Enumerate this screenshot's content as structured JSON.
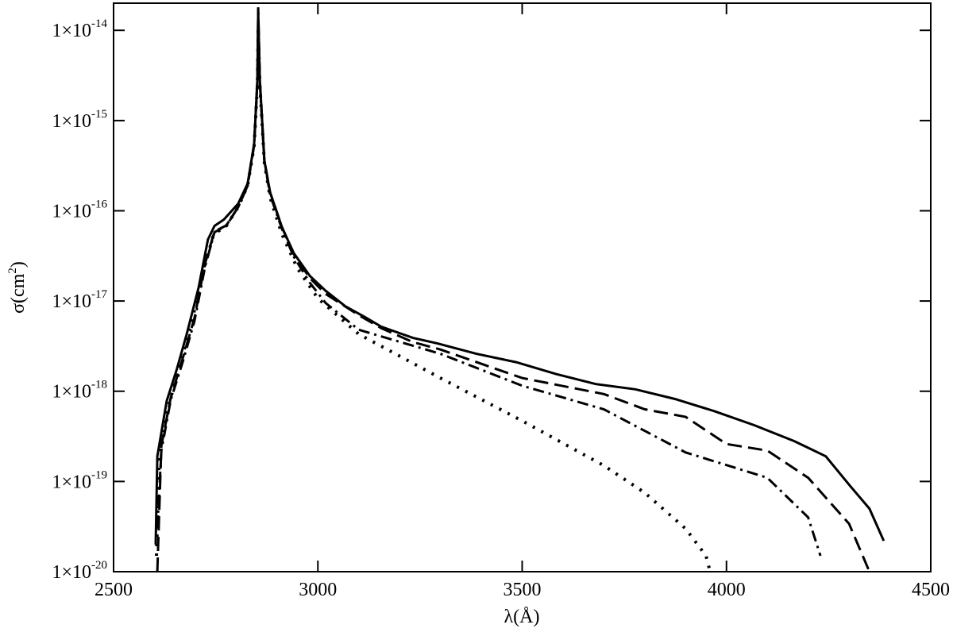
{
  "chart_data": {
    "type": "line",
    "xlabel": "λ(Å)",
    "ylabel": {
      "text": "σ(cm",
      "sup": "2",
      "end": ")"
    },
    "xlim": [
      2500,
      4500
    ],
    "xticks": [
      2500,
      3000,
      3500,
      4000,
      4500
    ],
    "ylim": [
      1e-20,
      2e-14
    ],
    "yscale": "log",
    "yticks": [
      {
        "value": 1e-20,
        "label": "1×10",
        "sup": "-20"
      },
      {
        "value": 1e-19,
        "label": "1×10",
        "sup": "-19"
      },
      {
        "value": 1e-18,
        "label": "1×10",
        "sup": "-18"
      },
      {
        "value": 1e-17,
        "label": "1×10",
        "sup": "-17"
      },
      {
        "value": 1e-16,
        "label": "1×10",
        "sup": "-16"
      },
      {
        "value": 1e-15,
        "label": "1×10",
        "sup": "-15"
      },
      {
        "value": 1e-14,
        "label": "1×10",
        "sup": "-14"
      }
    ],
    "series": [
      {
        "color": "#000000",
        "dash": "solid",
        "x": [
          2603,
          2607,
          2630,
          2654,
          2679,
          2708,
          2731,
          2747,
          2770,
          2805,
          2828,
          2844,
          2852,
          2854,
          2858,
          2869,
          2883,
          2912,
          2941,
          2980,
          3019,
          3068,
          3116,
          3155,
          3233,
          3291,
          3388,
          3485,
          3583,
          3680,
          3777,
          3874,
          3971,
          4068,
          4166,
          4243,
          4302,
          4350,
          4385
        ],
        "values": [
          2e-20,
          1.9e-19,
          7.8e-19,
          1.7e-18,
          4.3e-18,
          1.4e-17,
          4.8e-17,
          6.8e-17,
          8e-17,
          1.2e-16,
          2e-16,
          5.5e-16,
          2.8e-15,
          1.6e-14,
          2.8e-15,
          3.6e-16,
          1.6e-16,
          6.6e-17,
          3.4e-17,
          1.9e-17,
          1.3e-17,
          8.7e-18,
          6.6e-18,
          5.2e-18,
          3.9e-18,
          3.4e-18,
          2.6e-18,
          2.1e-18,
          1.55e-18,
          1.2e-18,
          1.05e-18,
          8.2e-19,
          6e-19,
          4.2e-19,
          2.8e-19,
          1.9e-19,
          9e-20,
          5e-20,
          2.2e-20
        ]
      },
      {
        "color": "#000000",
        "dash": "dashed",
        "x": [
          2607,
          2617,
          2640,
          2669,
          2698,
          2724,
          2747,
          2776,
          2805,
          2828,
          2844,
          2852,
          2854,
          2858,
          2869,
          2883,
          2912,
          2941,
          2980,
          3019,
          3097,
          3155,
          3233,
          3300,
          3500,
          3700,
          3800,
          3900,
          4000,
          4100,
          4200,
          4300,
          4350
        ],
        "values": [
          1e-20,
          2.5e-19,
          8.5e-19,
          2.3e-18,
          6.5e-18,
          2.6e-17,
          5.9e-17,
          6.9e-17,
          1.1e-16,
          1.9e-16,
          5.5e-16,
          2.8e-15,
          1.8e-14,
          2.8e-15,
          3.6e-16,
          1.6e-16,
          6.6e-17,
          3.3e-17,
          1.8e-17,
          1.2e-17,
          7.1e-18,
          5e-18,
          3.5e-18,
          2.9e-18,
          1.4e-18,
          9.3e-19,
          6.3e-19,
          5.2e-19,
          2.6e-19,
          2.2e-19,
          1.1e-19,
          3.4e-20,
          1e-20
        ]
      },
      {
        "color": "#000000",
        "dash": "dashdot",
        "x": [
          2607,
          2617,
          2640,
          2669,
          2698,
          2724,
          2747,
          2776,
          2805,
          2828,
          2844,
          2852,
          2854,
          2858,
          2869,
          2883,
          2912,
          2941,
          2980,
          3019,
          3100,
          3300,
          3500,
          3700,
          3900,
          4100,
          4200,
          4230
        ],
        "values": [
          3e-20,
          2.2e-19,
          8e-19,
          2.1e-18,
          6e-18,
          2.4e-17,
          5.8e-17,
          6.8e-17,
          1.1e-16,
          1.9e-16,
          5.3e-16,
          2.6e-15,
          1.4e-14,
          2.6e-15,
          3.5e-16,
          1.5e-16,
          6.3e-17,
          3.1e-17,
          1.6e-17,
          9.5e-18,
          4.8e-18,
          2.6e-18,
          1.15e-18,
          6.3e-19,
          2.1e-19,
          1.1e-19,
          4e-20,
          1.5e-20
        ]
      },
      {
        "color": "#000000",
        "dash": "dotted",
        "x": [
          2605,
          2612,
          2635,
          2660,
          2690,
          2720,
          2745,
          2776,
          2805,
          2828,
          2844,
          2852,
          2854,
          2858,
          2869,
          2883,
          2912,
          2950,
          3000,
          3100,
          3300,
          3500,
          3700,
          3800,
          3900,
          3950,
          3960
        ],
        "values": [
          1.5e-20,
          2e-19,
          7e-19,
          1.8e-18,
          5.5e-18,
          2.2e-17,
          5.5e-17,
          6.8e-17,
          1.1e-16,
          1.9e-16,
          5.2e-16,
          2.5e-15,
          1e-14,
          2.5e-15,
          3.4e-16,
          1.4e-16,
          5.5e-17,
          2.3e-17,
          1.07e-17,
          4.3e-18,
          1.4e-18,
          4.7e-19,
          1.5e-19,
          7.5e-20,
          3e-20,
          1.5e-20,
          1e-20
        ]
      }
    ]
  }
}
